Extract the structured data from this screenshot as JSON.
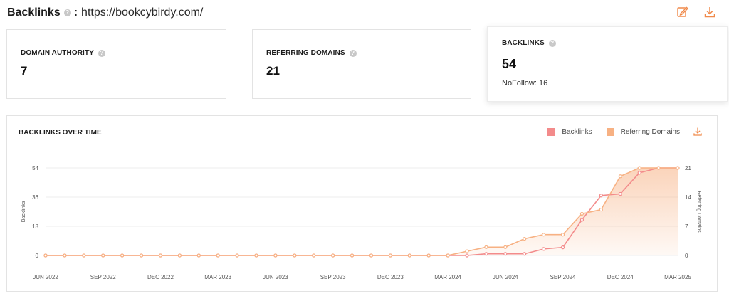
{
  "header": {
    "title": "Backlinks",
    "separator": ":",
    "url": "https://bookcybirdy.com/",
    "info_glyph": "?"
  },
  "icons": {
    "edit": "edit-icon",
    "download": "download-icon",
    "info": "question-mark-icon"
  },
  "colors": {
    "accent": "#f08a4b",
    "backlinks": "#f38b8b",
    "referring_domains": "#f7b183",
    "gridline": "#eeeeee"
  },
  "cards": {
    "domain_authority": {
      "label": "DOMAIN AUTHORITY",
      "value": "7"
    },
    "referring_domains": {
      "label": "REFERRING DOMAINS",
      "value": "21"
    },
    "backlinks": {
      "label": "BACKLINKS",
      "value": "54",
      "nofollow": "NoFollow: 16"
    }
  },
  "chart_data": {
    "type": "line",
    "title": "BACKLINKS OVER TIME",
    "x": [
      "Jun 2022",
      "Jul 2022",
      "Aug 2022",
      "Sep 2022",
      "Oct 2022",
      "Nov 2022",
      "Dec 2022",
      "Jan 2023",
      "Feb 2023",
      "Mar 2023",
      "Apr 2023",
      "May 2023",
      "Jun 2023",
      "Jul 2023",
      "Aug 2023",
      "Sep 2023",
      "Oct 2023",
      "Nov 2023",
      "Dec 2023",
      "Jan 2024",
      "Feb 2024",
      "Mar 2024",
      "Apr 2024",
      "May 2024",
      "Jun 2024",
      "Jul 2024",
      "Aug 2024",
      "Sep 2024",
      "Oct 2024",
      "Nov 2024",
      "Dec 2024",
      "Jan 2025",
      "Feb 2025",
      "Mar 2025"
    ],
    "xtick_labels": [
      "JUN 2022",
      "SEP 2022",
      "DEC 2022",
      "MAR 2023",
      "JUN 2023",
      "SEP 2023",
      "DEC 2023",
      "MAR 2024",
      "JUN 2024",
      "SEP 2024",
      "DEC 2024",
      "MAR 2025"
    ],
    "series": [
      {
        "name": "Backlinks",
        "axis": "left",
        "values": [
          0,
          0,
          0,
          0,
          0,
          0,
          0,
          0,
          0,
          0,
          0,
          0,
          0,
          0,
          0,
          0,
          0,
          0,
          0,
          0,
          0,
          0,
          0,
          1,
          1,
          1,
          4,
          5,
          22,
          37,
          38,
          51,
          54,
          54
        ]
      },
      {
        "name": "Referring Domains",
        "axis": "right",
        "values": [
          0,
          0,
          0,
          0,
          0,
          0,
          0,
          0,
          0,
          0,
          0,
          0,
          0,
          0,
          0,
          0,
          0,
          0,
          0,
          0,
          0,
          0,
          1,
          2,
          2,
          4,
          5,
          5,
          10,
          11,
          19,
          21,
          21,
          21
        ]
      }
    ],
    "ylabel": "Backlinks",
    "y2label": "Referring Domains",
    "yticks": [
      0,
      18,
      36,
      54
    ],
    "y2ticks": [
      0,
      7,
      14,
      21
    ],
    "ylim": [
      0,
      54
    ],
    "y2lim": [
      0,
      21
    ],
    "grid": "horizontal",
    "legend": "top-right"
  }
}
